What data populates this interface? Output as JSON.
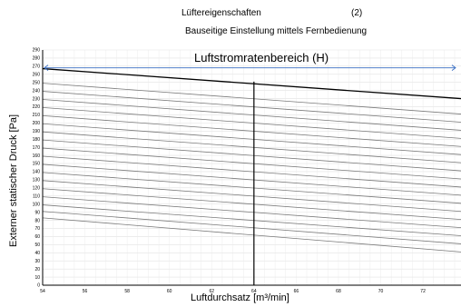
{
  "header": {
    "title": "Lüftereigenschaften",
    "number": "(2)",
    "subtitle": "Bauseitige Einstellung mittels Fernbedienung"
  },
  "chart_data": {
    "type": "line",
    "title": "Lüftereigenschaften",
    "subtitle": "Bauseitige Einstellung mittels Fernbedienung",
    "xlabel": "Luftdurchsatz [m³/min]",
    "ylabel": "Externer statischer Druck [Pa]",
    "xlim": [
      54,
      74
    ],
    "ylim": [
      0,
      290
    ],
    "x_ticks": [
      54,
      56,
      58,
      60,
      62,
      64,
      66,
      68,
      70,
      72
    ],
    "y_ticks": [
      0,
      10,
      20,
      30,
      40,
      50,
      60,
      70,
      80,
      90,
      100,
      110,
      120,
      130,
      140,
      150,
      160,
      170,
      180,
      190,
      200,
      210,
      220,
      230,
      240,
      250,
      260,
      270,
      280,
      290
    ],
    "grid": true,
    "annotation": "Luftstromratenbereich (H)",
    "range_arrow": {
      "from_x": 54,
      "to_x": 73.8,
      "y": 268
    },
    "marker_line": {
      "x": 64,
      "y_top": 251
    },
    "main_curve": {
      "x": [
        54,
        73.8
      ],
      "y": [
        267,
        230
      ]
    },
    "series": [
      {
        "x": [
          54,
          73.8
        ],
        "y": [
          249,
          211
        ]
      },
      {
        "x": [
          54,
          73.8
        ],
        "y": [
          239,
          201
        ]
      },
      {
        "x": [
          54,
          73.8
        ],
        "y": [
          229,
          191
        ]
      },
      {
        "x": [
          54,
          73.8
        ],
        "y": [
          219,
          181
        ]
      },
      {
        "x": [
          54,
          73.8
        ],
        "y": [
          209,
          171
        ]
      },
      {
        "x": [
          54,
          73.8
        ],
        "y": [
          199,
          161
        ]
      },
      {
        "x": [
          54,
          73.8
        ],
        "y": [
          189,
          151
        ]
      },
      {
        "x": [
          54,
          73.8
        ],
        "y": [
          179,
          141
        ]
      },
      {
        "x": [
          54,
          73.8
        ],
        "y": [
          169,
          131
        ]
      },
      {
        "x": [
          54,
          73.8
        ],
        "y": [
          159,
          121
        ]
      },
      {
        "x": [
          54,
          73.8
        ],
        "y": [
          149,
          111
        ]
      },
      {
        "x": [
          54,
          73.8
        ],
        "y": [
          139,
          101
        ]
      },
      {
        "x": [
          54,
          73.8
        ],
        "y": [
          129,
          91
        ]
      },
      {
        "x": [
          54,
          73.8
        ],
        "y": [
          119,
          81
        ]
      },
      {
        "x": [
          54,
          73.8
        ],
        "y": [
          109,
          71
        ]
      },
      {
        "x": [
          54,
          73.8
        ],
        "y": [
          99,
          61
        ]
      },
      {
        "x": [
          54,
          73.8
        ],
        "y": [
          91,
          51
        ]
      },
      {
        "x": [
          54,
          73.8
        ],
        "y": [
          83,
          41
        ]
      }
    ]
  }
}
